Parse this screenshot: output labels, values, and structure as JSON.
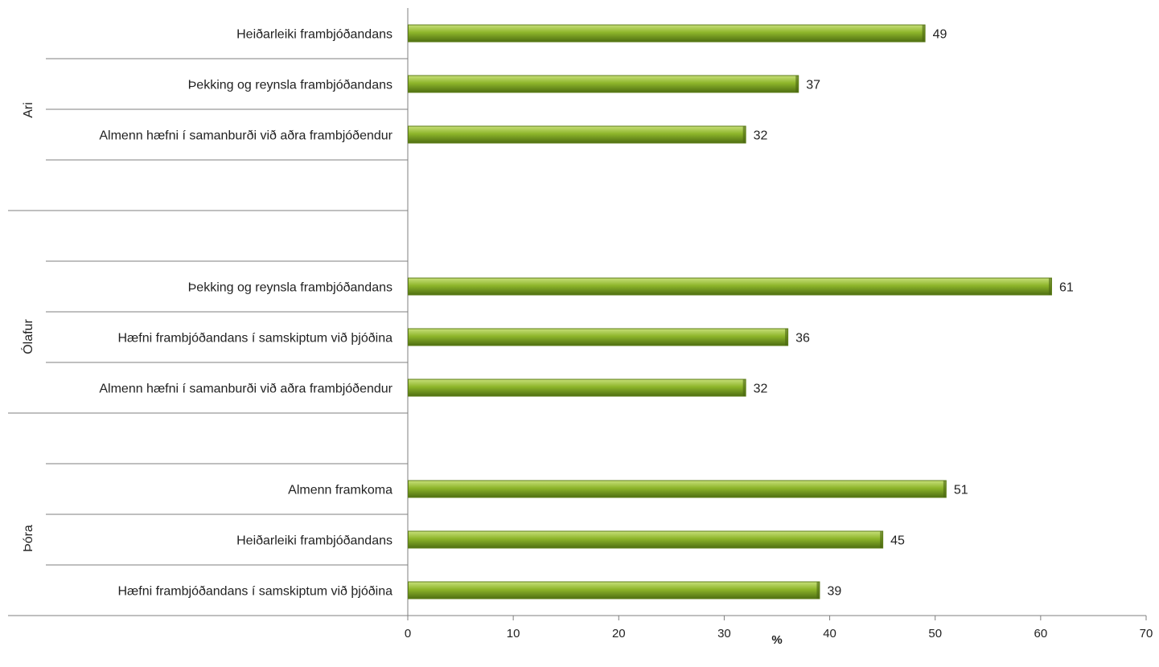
{
  "chart_data": {
    "type": "bar",
    "orientation": "horizontal",
    "xlabel": "%",
    "xlim": [
      0,
      70
    ],
    "xticks": [
      0,
      10,
      20,
      30,
      40,
      50,
      60,
      70
    ],
    "grid": false,
    "legend": "none",
    "bar_color": "#8db52a",
    "groups": [
      {
        "name": "Ari",
        "items": [
          {
            "label": "Heiðarleiki frambjóðandans",
            "value": 49
          },
          {
            "label": "Þekking og reynsla frambjóðandans",
            "value": 37
          },
          {
            "label": "Almenn hæfni í samanburði við aðra frambjóðendur",
            "value": 32
          }
        ]
      },
      {
        "name": "Ólafur",
        "items": [
          {
            "label": "Þekking og reynsla frambjóðandans",
            "value": 61
          },
          {
            "label": "Hæfni frambjóðandans í samskiptum við þjóðina",
            "value": 36
          },
          {
            "label": "Almenn hæfni í samanburði við aðra frambjóðendur",
            "value": 32
          }
        ]
      },
      {
        "name": "Þóra",
        "items": [
          {
            "label": "Almenn framkoma",
            "value": 51
          },
          {
            "label": "Heiðarleiki frambjóðandans",
            "value": 45
          },
          {
            "label": "Hæfni frambjóðandans í samskiptum við þjóðina",
            "value": 39
          }
        ]
      }
    ]
  }
}
